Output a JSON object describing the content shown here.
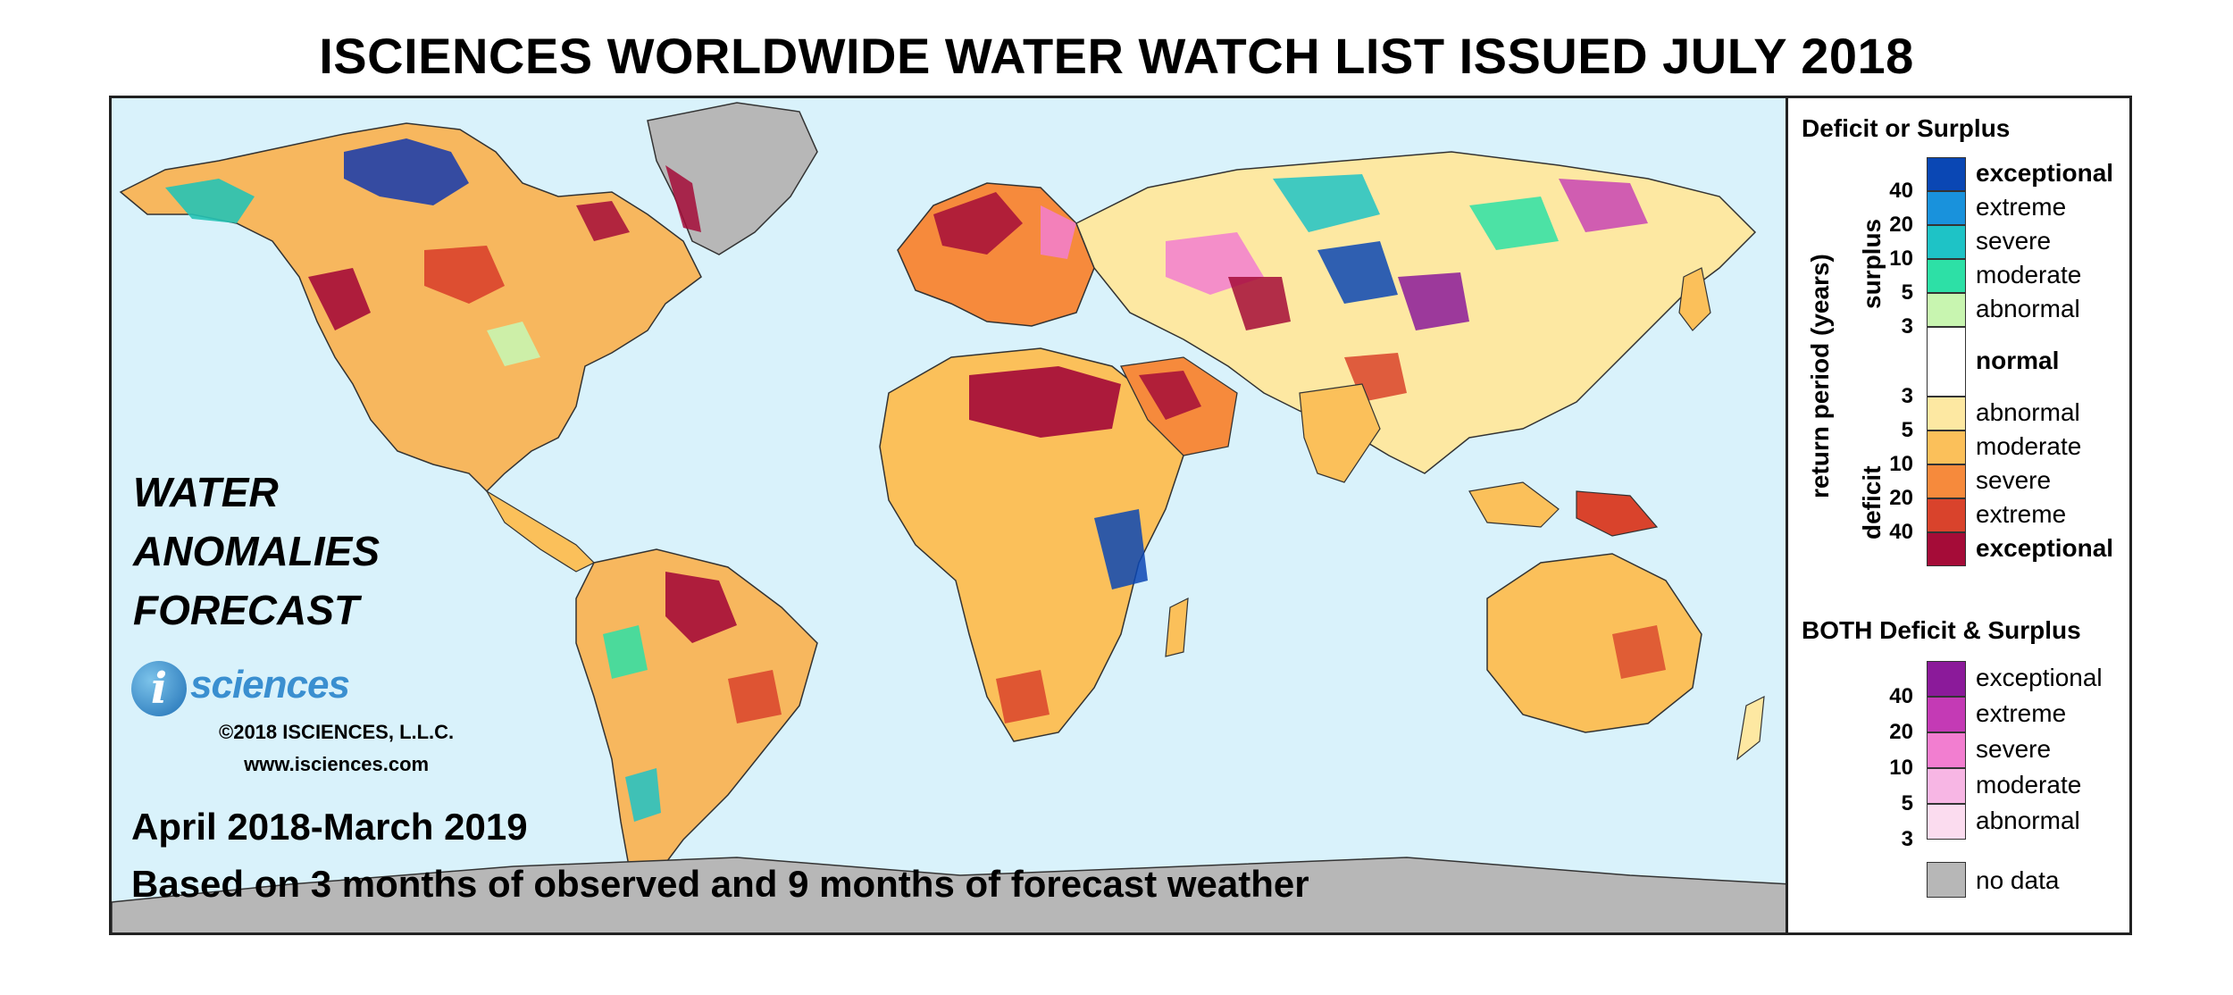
{
  "title": "ISCIENCES WORLDWIDE WATER WATCH LIST ISSUED JULY 2018",
  "map": {
    "label_lines": [
      "WATER",
      "ANOMALIES",
      "FORECAST"
    ],
    "logo_letter": "i",
    "logo_word": "sciences",
    "copyright": "©2018 ISCIENCES, L.L.C.",
    "website": "www.isciences.com",
    "period": "April 2018-March 2019",
    "basis": "Based on 3 months of observed and 9 months of forecast weather"
  },
  "legend": {
    "heading1": "Deficit or Surplus",
    "axis_label": "return period (years)",
    "surplus_label": "surplus",
    "deficit_label": "deficit",
    "surplus": [
      {
        "label": "exceptional",
        "color": "#0a47b4",
        "bold": true
      },
      {
        "label": "extreme",
        "color": "#1992dc"
      },
      {
        "label": "severe",
        "color": "#1ec3c6"
      },
      {
        "label": "moderate",
        "color": "#2de0a6"
      },
      {
        "label": "abnormal",
        "color": "#c8f5b0"
      }
    ],
    "surplus_ticks": [
      "40",
      "20",
      "10",
      "5",
      "3"
    ],
    "normal": {
      "label": "normal",
      "color": "#ffffff"
    },
    "deficit": [
      {
        "label": "abnormal",
        "color": "#fde8a2"
      },
      {
        "label": "moderate",
        "color": "#fbc05a"
      },
      {
        "label": "severe",
        "color": "#f68a3c"
      },
      {
        "label": "extreme",
        "color": "#d9432c"
      },
      {
        "label": "exceptional",
        "color": "#a50c38",
        "bold": true
      }
    ],
    "deficit_ticks": [
      "3",
      "5",
      "10",
      "20",
      "40"
    ],
    "heading2": "BOTH Deficit & Surplus",
    "both": [
      {
        "label": "exceptional",
        "color": "#8b1a9a"
      },
      {
        "label": "extreme",
        "color": "#c43ab5"
      },
      {
        "label": "severe",
        "color": "#f27ed0"
      },
      {
        "label": "moderate",
        "color": "#f7b6e4"
      },
      {
        "label": "abnormal",
        "color": "#fbdcef"
      }
    ],
    "both_ticks": [
      "40",
      "20",
      "10",
      "5",
      "3"
    ],
    "nodata": {
      "label": "no data",
      "color": "#b7b7b7"
    }
  }
}
